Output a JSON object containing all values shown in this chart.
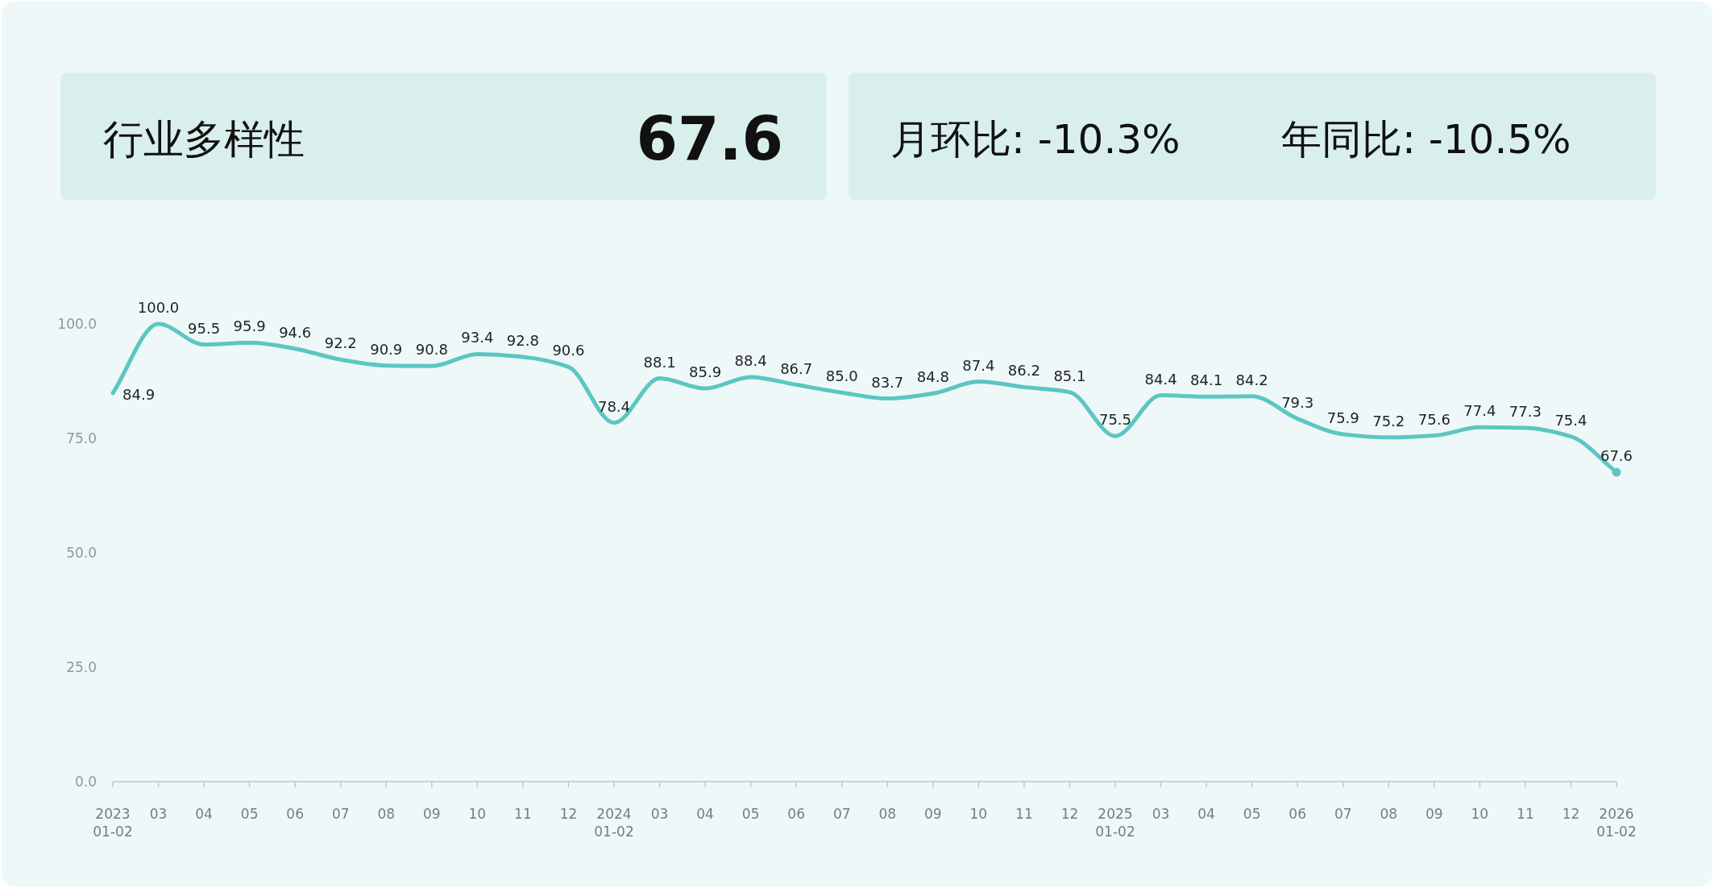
{
  "chart_data": {
    "type": "line",
    "title": "行业多样性",
    "annotations": [
      "67.6",
      "月环比: -10.3%",
      "年同比: -10.5%"
    ],
    "categories": [
      "2023\n01-02",
      "03",
      "04",
      "05",
      "06",
      "07",
      "08",
      "09",
      "10",
      "11",
      "12",
      "2024\n01-02",
      "03",
      "04",
      "05",
      "06",
      "07",
      "08",
      "09",
      "10",
      "11",
      "12",
      "2025\n01-02",
      "03",
      "04",
      "05",
      "06",
      "07",
      "08",
      "09",
      "10",
      "11",
      "12",
      "2026\n01-02"
    ],
    "series": [
      {
        "color": "#5cc6c2",
        "values": [
          84.9,
          100.0,
          95.5,
          95.9,
          94.6,
          92.2,
          90.9,
          90.8,
          93.4,
          92.8,
          90.6,
          78.4,
          88.1,
          85.9,
          88.4,
          86.7,
          85.0,
          83.7,
          84.8,
          87.4,
          86.2,
          85.1,
          75.5,
          84.4,
          84.1,
          84.2,
          79.3,
          75.9,
          75.2,
          75.6,
          77.4,
          77.3,
          75.4,
          67.6
        ],
        "value_labels": [
          "84.9",
          "100.0",
          "95.5",
          "95.9",
          "94.6",
          "92.2",
          "90.9",
          "90.8",
          "93.4",
          "92.8",
          "90.6",
          "78.4",
          "88.1",
          "85.9",
          "88.4",
          "86.7",
          "85.0",
          "83.7",
          "84.8",
          "87.4",
          "86.2",
          "85.1",
          "75.5",
          "84.4",
          "84.1",
          "84.2",
          "79.3",
          "75.9",
          "75.2",
          "75.6",
          "77.4",
          "77.3",
          "75.4",
          "67.6"
        ]
      }
    ],
    "ylim": [
      0,
      100
    ],
    "yticks": [
      {
        "value": 0,
        "label": "0.0"
      },
      {
        "value": 25,
        "label": "25.0"
      },
      {
        "value": 50,
        "label": "50.0"
      },
      {
        "value": 75,
        "label": "75.0"
      },
      {
        "value": 100,
        "label": "100.0"
      }
    ]
  }
}
